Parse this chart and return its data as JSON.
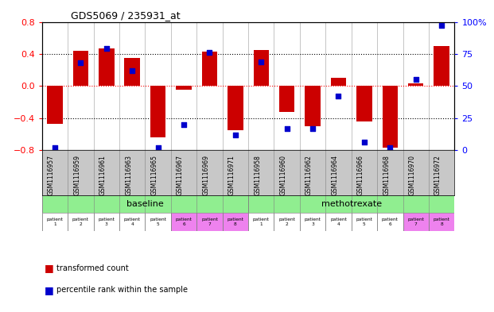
{
  "title": "GDS5069 / 235931_at",
  "samples": [
    "GSM1116957",
    "GSM1116959",
    "GSM1116961",
    "GSM1116963",
    "GSM1116965",
    "GSM1116967",
    "GSM1116969",
    "GSM1116971",
    "GSM1116958",
    "GSM1116960",
    "GSM1116962",
    "GSM1116964",
    "GSM1116966",
    "GSM1116968",
    "GSM1116970",
    "GSM1116972"
  ],
  "transformed_count": [
    -0.47,
    0.44,
    0.47,
    0.35,
    -0.64,
    -0.05,
    0.43,
    -0.55,
    0.45,
    -0.32,
    -0.5,
    0.1,
    -0.44,
    -0.77,
    0.03,
    0.5
  ],
  "percentile_rank": [
    0.02,
    0.68,
    0.79,
    0.62,
    0.02,
    0.2,
    0.76,
    0.12,
    0.69,
    0.17,
    0.17,
    0.42,
    0.06,
    0.02,
    0.55,
    0.97
  ],
  "ylim": [
    -0.8,
    0.8
  ],
  "y2lim": [
    0,
    100
  ],
  "yticks": [
    -0.8,
    -0.4,
    0.0,
    0.4,
    0.8
  ],
  "y2ticks": [
    0,
    25,
    50,
    75,
    100
  ],
  "dotted_lines_black": [
    -0.4,
    0.4
  ],
  "dotted_line_red": 0.0,
  "bar_color": "#cc0000",
  "dot_color": "#0000cc",
  "bar_width": 0.6,
  "agent_row_color": "#90ee90",
  "individual_pink_cols": [
    5,
    6,
    7,
    14,
    15
  ],
  "patient_labels": [
    "patient\n1",
    "patient\n2",
    "patient\n3",
    "patient\n4",
    "patient\n5",
    "patient\n6",
    "patient\n7",
    "patient\n8",
    "patient\n1",
    "patient\n2",
    "patient\n3",
    "patient\n4",
    "patient\n5",
    "patient\n6",
    "patient\n7",
    "patient\n8"
  ],
  "pink_color": "#ee82ee",
  "white_color": "#ffffff",
  "gray_bg": "#c8c8c8",
  "axis_bg": "#ffffff"
}
